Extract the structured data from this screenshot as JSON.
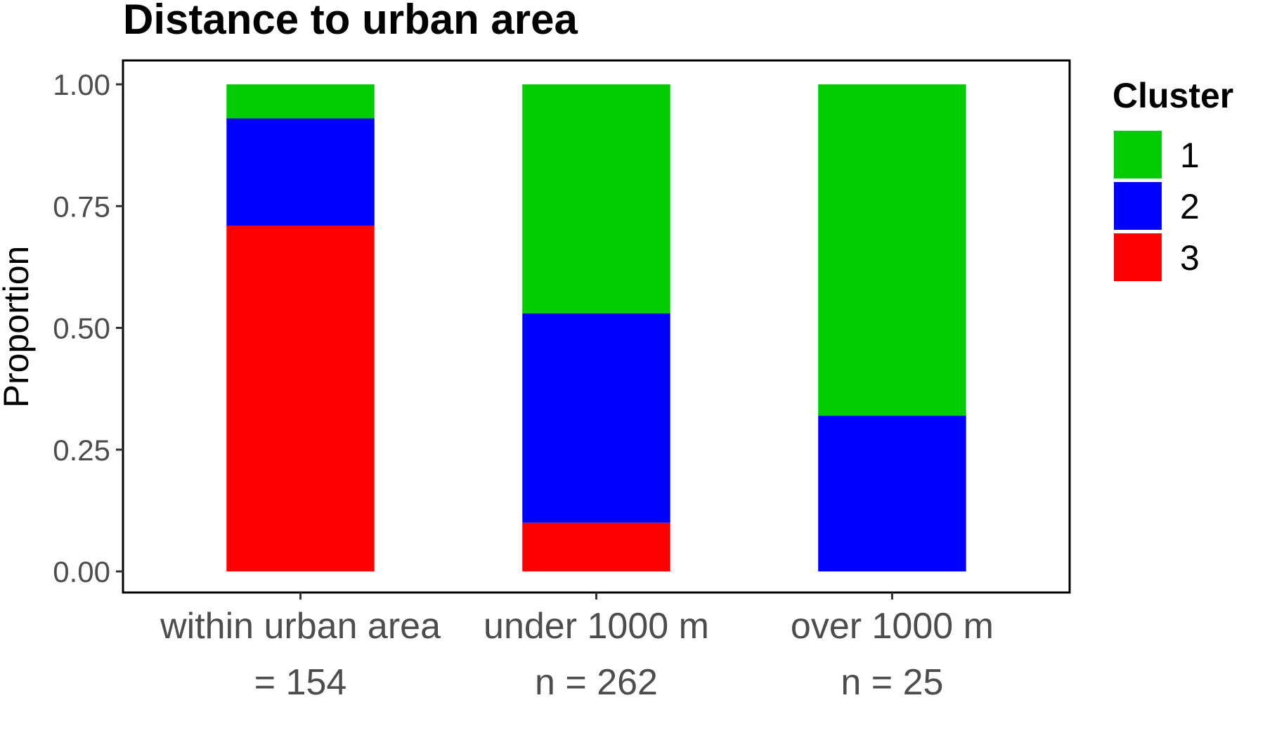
{
  "chart_data": {
    "type": "bar",
    "stacked": true,
    "title": "Distance to urban area",
    "xlabel": "",
    "ylabel": "Proportion",
    "ylim": [
      0,
      1
    ],
    "yticks": [
      "0.00",
      "0.25",
      "0.50",
      "0.75",
      "1.00"
    ],
    "categories": [
      "within urban area",
      "under 1000 m",
      "over 1000 m"
    ],
    "category_sublabels": [
      "= 154",
      "n = 262",
      "n = 25"
    ],
    "series": [
      {
        "name": "3",
        "color": "#ff0000",
        "values": [
          0.71,
          0.1,
          0.0
        ]
      },
      {
        "name": "2",
        "color": "#0000ff",
        "values": [
          0.22,
          0.43,
          0.32
        ]
      },
      {
        "name": "1",
        "color": "#00cc00",
        "values": [
          0.07,
          0.47,
          0.68
        ]
      }
    ],
    "legend": {
      "title": "Cluster",
      "position": "right",
      "items": [
        {
          "label": "1",
          "color": "#00cc00"
        },
        {
          "label": "2",
          "color": "#0000ff"
        },
        {
          "label": "3",
          "color": "#ff0000"
        }
      ]
    },
    "grid": false
  }
}
